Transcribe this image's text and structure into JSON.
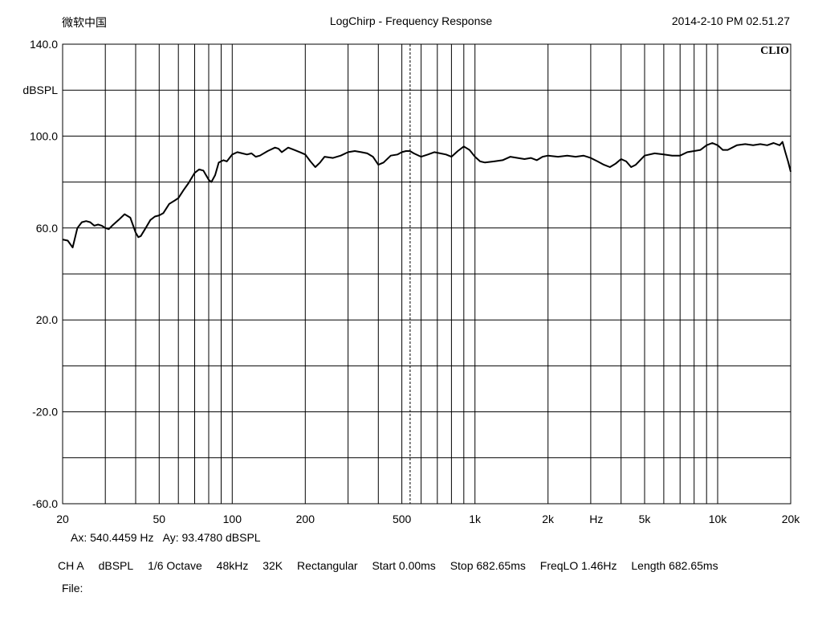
{
  "header": {
    "left": "微软中国",
    "title": "LogChirp - Frequency Response",
    "timestamp": "2014-2-10 PM 02.51.27"
  },
  "brand": "CLIO",
  "cursor": {
    "ax_label": "Ax: 540.4459 Hz",
    "ay_label": "Ay: 93.4780 dBSPL"
  },
  "settings": {
    "channel": "CH A",
    "unit": "dBSPL",
    "smoothing": "1/6 Octave",
    "sample_rate": "48kHz",
    "fft_size": "32K",
    "window": "Rectangular",
    "start": "Start 0.00ms",
    "stop": "Stop 682.65ms",
    "freqlo": "FreqLO 1.46Hz",
    "length": "Length 682.65ms"
  },
  "file_label": "File:",
  "chart_data": {
    "type": "line",
    "title": "LogChirp - Frequency Response",
    "xscale": "log",
    "xlim": [
      20,
      20000
    ],
    "ylim": [
      -60,
      140
    ],
    "ylabel": "dBSPL",
    "xlabel": "Hz",
    "grid": true,
    "x_ticks": [
      {
        "value": 20,
        "label": "20"
      },
      {
        "value": 50,
        "label": "50"
      },
      {
        "value": 100,
        "label": "100"
      },
      {
        "value": 200,
        "label": "200"
      },
      {
        "value": 500,
        "label": "500"
      },
      {
        "value": 1000,
        "label": "1k"
      },
      {
        "value": 2000,
        "label": "2k"
      },
      {
        "value": 5000,
        "label": "5k"
      },
      {
        "value": 10000,
        "label": "10k"
      },
      {
        "value": 20000,
        "label": "20k"
      }
    ],
    "y_ticks": [
      {
        "value": 140,
        "label": "140.0"
      },
      {
        "value": 100,
        "label": "100.0"
      },
      {
        "value": 60,
        "label": "60.0"
      },
      {
        "value": 20,
        "label": "20.0"
      },
      {
        "value": -20,
        "label": "-20.0"
      },
      {
        "value": -60,
        "label": "-60.0"
      }
    ],
    "y_grid_step": 20,
    "cursor_x": 540.4459,
    "series": [
      {
        "color": "#000000",
        "points": [
          [
            20,
            55.0
          ],
          [
            21,
            54.5
          ],
          [
            22,
            51.5
          ],
          [
            23,
            60.0
          ],
          [
            24,
            62.5
          ],
          [
            25,
            63.0
          ],
          [
            26,
            62.5
          ],
          [
            27,
            61.0
          ],
          [
            28,
            61.5
          ],
          [
            29,
            61.0
          ],
          [
            30,
            60.0
          ],
          [
            31,
            59.5
          ],
          [
            32,
            61.0
          ],
          [
            34,
            63.5
          ],
          [
            36,
            66.0
          ],
          [
            38,
            64.5
          ],
          [
            40,
            58.0
          ],
          [
            41,
            56.0
          ],
          [
            42,
            56.5
          ],
          [
            44,
            60.0
          ],
          [
            46,
            63.5
          ],
          [
            48,
            65.0
          ],
          [
            50,
            65.5
          ],
          [
            52,
            66.5
          ],
          [
            55,
            70.5
          ],
          [
            58,
            72.0
          ],
          [
            60,
            73.0
          ],
          [
            63,
            76.5
          ],
          [
            66,
            79.5
          ],
          [
            70,
            84.0
          ],
          [
            73,
            85.5
          ],
          [
            76,
            85.0
          ],
          [
            80,
            81.0
          ],
          [
            82,
            80.0
          ],
          [
            85,
            83.0
          ],
          [
            88,
            88.5
          ],
          [
            92,
            89.5
          ],
          [
            95,
            89.0
          ],
          [
            100,
            92.0
          ],
          [
            105,
            93.0
          ],
          [
            110,
            92.5
          ],
          [
            115,
            92.0
          ],
          [
            120,
            92.5
          ],
          [
            125,
            91.0
          ],
          [
            130,
            91.5
          ],
          [
            140,
            93.5
          ],
          [
            150,
            95.0
          ],
          [
            155,
            94.5
          ],
          [
            160,
            93.0
          ],
          [
            170,
            95.0
          ],
          [
            180,
            94.0
          ],
          [
            190,
            93.0
          ],
          [
            200,
            92.0
          ],
          [
            210,
            89.0
          ],
          [
            220,
            86.5
          ],
          [
            230,
            88.5
          ],
          [
            240,
            91.0
          ],
          [
            260,
            90.5
          ],
          [
            280,
            91.5
          ],
          [
            300,
            93.0
          ],
          [
            320,
            93.5
          ],
          [
            340,
            93.0
          ],
          [
            360,
            92.5
          ],
          [
            380,
            91.0
          ],
          [
            400,
            87.5
          ],
          [
            420,
            88.5
          ],
          [
            450,
            91.5
          ],
          [
            480,
            92.0
          ],
          [
            500,
            93.0
          ],
          [
            520,
            93.5
          ],
          [
            540,
            93.5
          ],
          [
            560,
            92.5
          ],
          [
            600,
            91.0
          ],
          [
            640,
            92.0
          ],
          [
            680,
            93.0
          ],
          [
            720,
            92.5
          ],
          [
            760,
            92.0
          ],
          [
            800,
            91.0
          ],
          [
            850,
            93.5
          ],
          [
            900,
            95.5
          ],
          [
            950,
            94.0
          ],
          [
            1000,
            91.0
          ],
          [
            1050,
            89.0
          ],
          [
            1100,
            88.5
          ],
          [
            1200,
            89.0
          ],
          [
            1300,
            89.5
          ],
          [
            1400,
            91.0
          ],
          [
            1500,
            90.5
          ],
          [
            1600,
            90.0
          ],
          [
            1700,
            90.5
          ],
          [
            1800,
            89.5
          ],
          [
            1900,
            91.0
          ],
          [
            2000,
            91.5
          ],
          [
            2200,
            91.0
          ],
          [
            2400,
            91.5
          ],
          [
            2600,
            91.0
          ],
          [
            2800,
            91.5
          ],
          [
            3000,
            90.5
          ],
          [
            3200,
            89.0
          ],
          [
            3400,
            87.5
          ],
          [
            3600,
            86.5
          ],
          [
            3800,
            88.0
          ],
          [
            4000,
            90.0
          ],
          [
            4200,
            89.0
          ],
          [
            4400,
            86.5
          ],
          [
            4600,
            87.5
          ],
          [
            5000,
            91.5
          ],
          [
            5500,
            92.5
          ],
          [
            6000,
            92.0
          ],
          [
            6500,
            91.5
          ],
          [
            7000,
            91.5
          ],
          [
            7500,
            93.0
          ],
          [
            8000,
            93.5
          ],
          [
            8500,
            94.0
          ],
          [
            9000,
            96.0
          ],
          [
            9500,
            97.0
          ],
          [
            10000,
            96.0
          ],
          [
            10500,
            94.0
          ],
          [
            11000,
            94.0
          ],
          [
            12000,
            96.0
          ],
          [
            13000,
            96.5
          ],
          [
            14000,
            96.0
          ],
          [
            15000,
            96.5
          ],
          [
            16000,
            96.0
          ],
          [
            17000,
            97.0
          ],
          [
            18000,
            96.0
          ],
          [
            18500,
            97.5
          ],
          [
            19000,
            93.0
          ],
          [
            19500,
            89.0
          ],
          [
            20000,
            84.5
          ]
        ]
      }
    ]
  }
}
